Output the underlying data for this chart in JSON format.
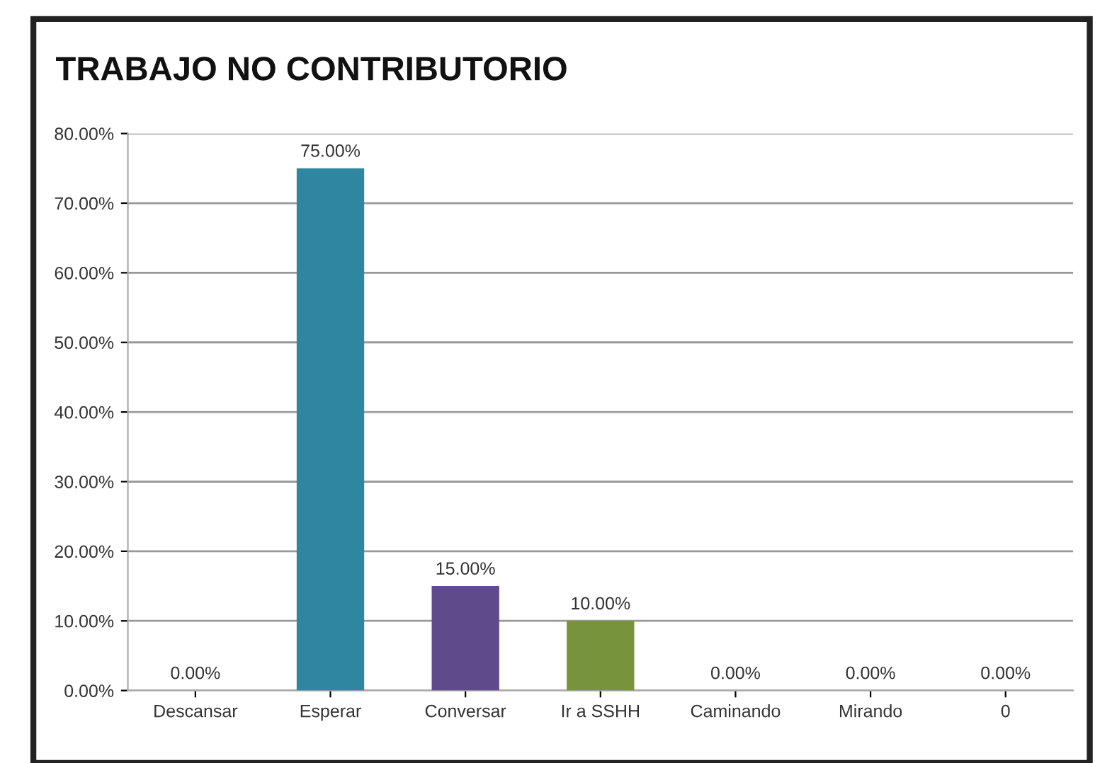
{
  "chart_data": {
    "type": "bar",
    "title": "TRABAJO NO CONTRIBUTORIO",
    "categories": [
      "Descansar",
      "Esperar",
      "Conversar",
      "Ir a SSHH",
      "Caminando",
      "Mirando",
      "0"
    ],
    "values": [
      0,
      75,
      15,
      10,
      0,
      0,
      0
    ],
    "colors": [
      "#4f81bd",
      "#2e86a0",
      "#5f4a8b",
      "#77933c",
      "#4bacc6",
      "#f79646",
      "#2c4d75"
    ],
    "value_labels": [
      "0.00%",
      "75.00%",
      "15.00%",
      "10.00%",
      "0.00%",
      "0.00%",
      "0.00%"
    ],
    "ylim": [
      0,
      80
    ],
    "yticks": [
      {
        "value": 0,
        "label": "0.00%"
      },
      {
        "value": 10,
        "label": "10.00%"
      },
      {
        "value": 20,
        "label": "20.00%"
      },
      {
        "value": 30,
        "label": "30.00%"
      },
      {
        "value": 40,
        "label": "40.00%"
      },
      {
        "value": 50,
        "label": "50.00%"
      },
      {
        "value": 60,
        "label": "60.00%"
      },
      {
        "value": 70,
        "label": "70.00%"
      },
      {
        "value": 80,
        "label": "80.00%"
      }
    ],
    "grid": "y",
    "legend": false
  }
}
